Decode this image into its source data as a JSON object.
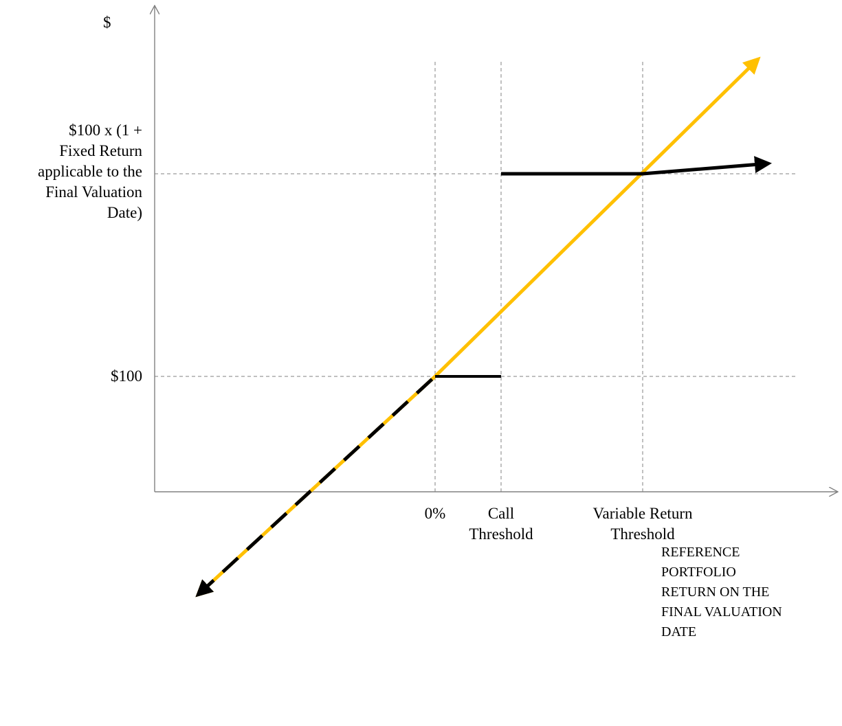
{
  "y_axis": {
    "unit": "$",
    "levels": [
      {
        "label_lines": [
          "$100"
        ]
      },
      {
        "label_lines": [
          "$100 x (1 +",
          "Fixed Return",
          "applicable to the",
          "Final Valuation",
          "Date)"
        ]
      }
    ]
  },
  "x_axis": {
    "thresholds": [
      {
        "label_lines": [
          "0%"
        ]
      },
      {
        "label_lines": [
          "Call",
          "Threshold"
        ]
      },
      {
        "label_lines": [
          "Variable Return",
          "Threshold"
        ]
      }
    ],
    "title_lines": [
      "REFERENCE",
      "PORTFOLIO",
      "RETURN ON THE",
      "FINAL VALUATION",
      "DATE"
    ]
  },
  "colors": {
    "axis": "#808080",
    "guide": "#808080",
    "reference_line": "#FFC000",
    "payoff_line": "#000000"
  }
}
